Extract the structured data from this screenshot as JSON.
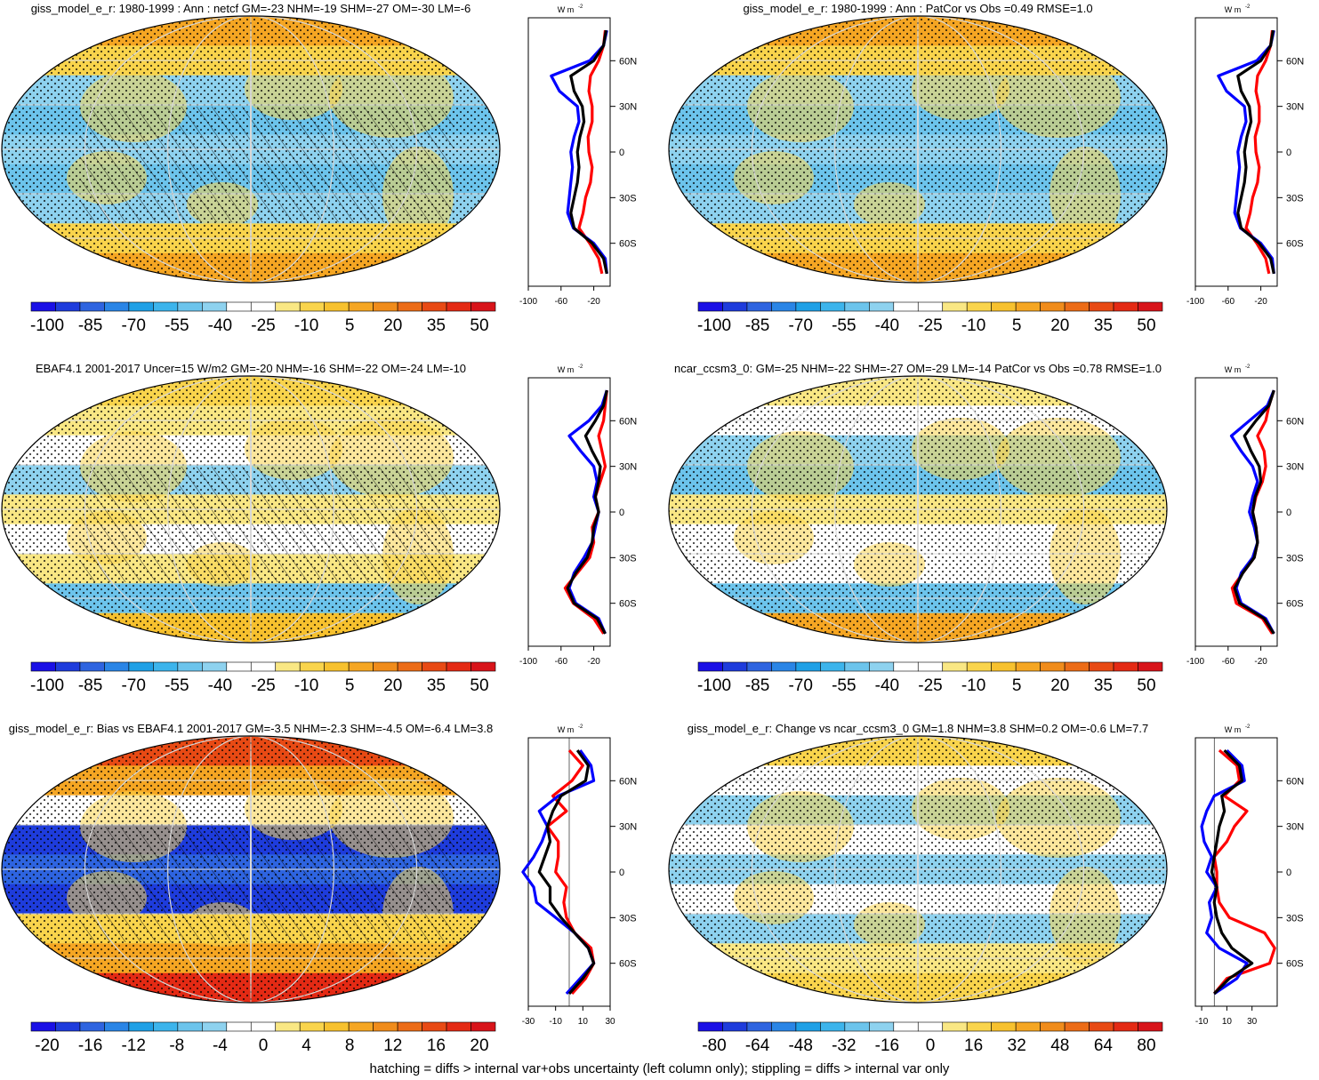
{
  "footnote": "hatching = diffs > internal var+obs uncertainty (left column only); stippling = diffs > internal var only",
  "colors": {
    "palette": [
      "#1a10e6",
      "#1e3cdc",
      "#2e64e0",
      "#2a85e6",
      "#1fa0e6",
      "#3cb4ec",
      "#6cc4ec",
      "#8ed2ef",
      "#ffffff",
      "#ffffff",
      "#f9e784",
      "#f9d44c",
      "#f7c12e",
      "#f5a623",
      "#f08c1b",
      "#ec6c17",
      "#e84a14",
      "#e42a14",
      "#d8141a"
    ],
    "zonal_red": "#ff0000",
    "zonal_blue": "#0000ff",
    "zonal_black": "#000000",
    "grid": "#d8d8d8"
  },
  "panels": [
    {
      "id": "p1",
      "title": "giss_model_e_r: 1980-1999 : Ann : netcf GM=-23 NHM=-19 SHM=-27 OM=-30 LM=-6",
      "colorbar_labels": [
        "-100",
        "-85",
        "-70",
        "-55",
        "-40",
        "-25",
        "-10",
        "5",
        "20",
        "35",
        "50"
      ],
      "zonal_unit": "W m",
      "zonal_unit_sup": "-2",
      "zonal_xticks": [
        "-100",
        "-60",
        "-20"
      ],
      "zonal_yticks": [
        "60N",
        "30N",
        "0",
        "30S",
        "60S"
      ],
      "hatched": true
    },
    {
      "id": "p2",
      "title": "giss_model_e_r: 1980-1999 : Ann : PatCor vs Obs =0.49 RMSE=1.0",
      "colorbar_labels": [
        "-100",
        "-85",
        "-70",
        "-55",
        "-40",
        "-25",
        "-10",
        "5",
        "20",
        "35",
        "50"
      ],
      "zonal_unit": "W m",
      "zonal_unit_sup": "-2",
      "zonal_xticks": [
        "-100",
        "-60",
        "-20"
      ],
      "zonal_yticks": [
        "60N",
        "30N",
        "0",
        "30S",
        "60S"
      ],
      "hatched": false
    },
    {
      "id": "p3",
      "title": "EBAF4.1 2001-2017 Uncer=15 W/m2 GM=-20 NHM=-16 SHM=-22 OM=-24 LM=-10",
      "colorbar_labels": [
        "-100",
        "-85",
        "-70",
        "-55",
        "-40",
        "-25",
        "-10",
        "5",
        "20",
        "35",
        "50"
      ],
      "zonal_unit": "W m",
      "zonal_unit_sup": "-2",
      "zonal_xticks": [
        "-100",
        "-60",
        "-20"
      ],
      "zonal_yticks": [
        "60N",
        "30N",
        "0",
        "30S",
        "60S"
      ],
      "hatched": true
    },
    {
      "id": "p4",
      "title": "ncar_ccsm3_0: GM=-25 NHM=-22 SHM=-27 OM=-29 LM=-14 PatCor vs Obs =0.78 RMSE=1.0",
      "colorbar_labels": [
        "-100",
        "-85",
        "-70",
        "-55",
        "-40",
        "-25",
        "-10",
        "5",
        "20",
        "35",
        "50"
      ],
      "zonal_unit": "W m",
      "zonal_unit_sup": "-2",
      "zonal_xticks": [
        "-100",
        "-60",
        "-20"
      ],
      "zonal_yticks": [
        "60N",
        "30N",
        "0",
        "30S",
        "60S"
      ],
      "hatched": false
    },
    {
      "id": "p5",
      "title": "giss_model_e_r: Bias vs EBAF4.1 2001-2017 GM=-3.5 NHM=-2.3 SHM=-4.5 OM=-6.4 LM=3.8",
      "colorbar_labels": [
        "-20",
        "-16",
        "-12",
        "-8",
        "-4",
        "0",
        "4",
        "8",
        "12",
        "16",
        "20"
      ],
      "zonal_unit": "W m",
      "zonal_unit_sup": "-2",
      "zonal_xticks": [
        "-30",
        "-10",
        "10",
        "30"
      ],
      "zonal_yticks": [
        "60N",
        "30N",
        "0",
        "30S",
        "60S"
      ],
      "hatched": true
    },
    {
      "id": "p6",
      "title": "giss_model_e_r: Change vs ncar_ccsm3_0 GM=1.8 NHM=3.8 SHM=0.2 OM=-0.6 LM=7.7",
      "colorbar_labels": [
        "-80",
        "-64",
        "-48",
        "-32",
        "-16",
        "0",
        "16",
        "32",
        "48",
        "64",
        "80"
      ],
      "zonal_unit": "W m",
      "zonal_unit_sup": "-2",
      "zonal_xticks": [
        "-10",
        "10",
        "30"
      ],
      "zonal_yticks": [
        "60N",
        "30N",
        "0",
        "30S",
        "60S"
      ],
      "hatched": false
    }
  ],
  "chart_data": [
    {
      "type": "heatmap",
      "title": "giss_model_e_r: 1980-1999 : Ann : netcf GM=-23 NHM=-19 SHM=-27 OM=-30 LM=-6",
      "colorbar_ticks": [
        -100,
        -85,
        -70,
        -55,
        -40,
        -25,
        -10,
        5,
        20,
        35,
        50
      ],
      "zonal_mean": {
        "lat": [
          -80,
          -70,
          -60,
          -50,
          -40,
          -30,
          -20,
          -10,
          0,
          10,
          20,
          30,
          40,
          50,
          60,
          70,
          80
        ],
        "xlim": [
          -100,
          0
        ],
        "series": [
          {
            "color": "red",
            "values": [
              -10,
              -14,
              -25,
              -38,
              -33,
              -30,
              -24,
              -22,
              -26,
              -27,
              -22,
              -22,
              -26,
              -24,
              -14,
              -8,
              -6
            ]
          },
          {
            "color": "blue",
            "values": [
              -4,
              -6,
              -20,
              -45,
              -52,
              -50,
              -48,
              -46,
              -48,
              -44,
              -38,
              -40,
              -62,
              -72,
              -25,
              -8,
              -4
            ]
          },
          {
            "color": "black",
            "values": [
              -4,
              -8,
              -22,
              -44,
              -48,
              -44,
              -40,
              -38,
              -40,
              -37,
              -32,
              -34,
              -44,
              -48,
              -20,
              -8,
              -5
            ]
          }
        ]
      }
    },
    {
      "type": "heatmap",
      "title": "giss_model_e_r: 1980-1999 : Ann : PatCor vs Obs =0.49 RMSE=1.0",
      "colorbar_ticks": [
        -100,
        -85,
        -70,
        -55,
        -40,
        -25,
        -10,
        5,
        20,
        35,
        50
      ],
      "zonal_mean": {
        "lat": [
          -80,
          -70,
          -60,
          -50,
          -40,
          -30,
          -20,
          -10,
          0,
          10,
          20,
          30,
          40,
          50,
          60,
          70,
          80
        ],
        "xlim": [
          -100,
          0
        ],
        "series": [
          {
            "color": "red",
            "values": [
              -10,
              -14,
              -25,
              -38,
              -33,
              -30,
              -24,
              -22,
              -26,
              -27,
              -22,
              -22,
              -26,
              -24,
              -14,
              -8,
              -6
            ]
          },
          {
            "color": "blue",
            "values": [
              -4,
              -6,
              -20,
              -45,
              -52,
              -50,
              -48,
              -46,
              -48,
              -44,
              -38,
              -40,
              -62,
              -72,
              -25,
              -8,
              -4
            ]
          },
          {
            "color": "black",
            "values": [
              -4,
              -8,
              -22,
              -44,
              -48,
              -44,
              -40,
              -38,
              -40,
              -37,
              -32,
              -34,
              -44,
              -48,
              -20,
              -8,
              -5
            ]
          }
        ]
      }
    },
    {
      "type": "heatmap",
      "title": "EBAF4.1 2001-2017 Uncer=15 W/m2 GM=-20 NHM=-16 SHM=-22 OM=-24 LM=-10",
      "colorbar_ticks": [
        -100,
        -85,
        -70,
        -55,
        -40,
        -25,
        -10,
        5,
        20,
        35,
        50
      ],
      "zonal_mean": {
        "lat": [
          -80,
          -70,
          -60,
          -50,
          -40,
          -30,
          -20,
          -10,
          0,
          10,
          20,
          30,
          40,
          50,
          60,
          70,
          80
        ],
        "xlim": [
          -100,
          0
        ],
        "series": [
          {
            "color": "red",
            "values": [
              -8,
              -20,
              -45,
              -55,
              -40,
              -25,
              -20,
              -22,
              -14,
              -18,
              -12,
              -6,
              -10,
              -14,
              -8,
              -6,
              -4
            ]
          },
          {
            "color": "blue",
            "values": [
              -6,
              -14,
              -42,
              -50,
              -44,
              -32,
              -22,
              -18,
              -14,
              -20,
              -16,
              -20,
              -36,
              -50,
              -26,
              -10,
              -4
            ]
          },
          {
            "color": "black",
            "values": [
              -6,
              -16,
              -44,
              -52,
              -42,
              -28,
              -22,
              -20,
              -14,
              -18,
              -14,
              -12,
              -22,
              -30,
              -18,
              -8,
              -4
            ]
          }
        ]
      }
    },
    {
      "type": "heatmap",
      "title": "ncar_ccsm3_0: GM=-25 NHM=-22 SHM=-27 OM=-29 LM=-14 PatCor vs Obs =0.78 RMSE=1.0",
      "colorbar_ticks": [
        -100,
        -85,
        -70,
        -55,
        -40,
        -25,
        -10,
        5,
        20,
        35,
        50
      ],
      "zonal_mean": {
        "lat": [
          -80,
          -70,
          -60,
          -50,
          -40,
          -30,
          -20,
          -10,
          0,
          10,
          20,
          30,
          40,
          50,
          60,
          70,
          80
        ],
        "xlim": [
          -100,
          0
        ],
        "series": [
          {
            "color": "red",
            "values": [
              -6,
              -18,
              -50,
              -55,
              -42,
              -28,
              -24,
              -26,
              -30,
              -26,
              -18,
              -14,
              -16,
              -24,
              -14,
              -10,
              -4
            ]
          },
          {
            "color": "blue",
            "values": [
              -4,
              -14,
              -44,
              -50,
              -44,
              -30,
              -24,
              -28,
              -34,
              -30,
              -24,
              -30,
              -44,
              -56,
              -34,
              -12,
              -4
            ]
          },
          {
            "color": "black",
            "values": [
              -4,
              -16,
              -46,
              -52,
              -42,
              -28,
              -24,
              -26,
              -30,
              -27,
              -20,
              -22,
              -32,
              -40,
              -26,
              -10,
              -4
            ]
          }
        ]
      }
    },
    {
      "type": "heatmap",
      "title": "giss_model_e_r: Bias vs EBAF4.1 2001-2017 GM=-3.5 NHM=-2.3 SHM=-4.5 OM=-6.4 LM=3.8",
      "colorbar_ticks": [
        -20,
        -16,
        -12,
        -8,
        -4,
        0,
        4,
        8,
        12,
        16,
        20
      ],
      "zonal_mean": {
        "lat": [
          -80,
          -70,
          -60,
          -50,
          -40,
          -30,
          -20,
          -10,
          0,
          10,
          20,
          30,
          40,
          50,
          60,
          70,
          80
        ],
        "xlim": [
          -30,
          30
        ],
        "series": [
          {
            "color": "red",
            "values": [
              2,
              12,
              18,
              16,
              4,
              -2,
              -4,
              -2,
              -10,
              -8,
              -8,
              -16,
              -2,
              -12,
              2,
              10,
              0
            ]
          },
          {
            "color": "blue",
            "values": [
              -2,
              8,
              18,
              14,
              4,
              -10,
              -24,
              -26,
              -34,
              -26,
              -20,
              -16,
              -22,
              -8,
              18,
              16,
              8
            ]
          },
          {
            "color": "black",
            "values": [
              0,
              10,
              18,
              14,
              4,
              -6,
              -14,
              -14,
              -22,
              -18,
              -14,
              -16,
              -12,
              -6,
              12,
              14,
              6
            ]
          }
        ]
      }
    },
    {
      "type": "heatmap",
      "title": "giss_model_e_r: Change vs ncar_ccsm3_0 GM=1.8 NHM=3.8 SHM=0.2 OM=-0.6 LM=7.7",
      "colorbar_ticks": [
        -80,
        -64,
        -48,
        -32,
        -16,
        0,
        16,
        32,
        48,
        64,
        80
      ],
      "zonal_mean": {
        "lat": [
          -80,
          -70,
          -60,
          -50,
          -40,
          -30,
          -20,
          -10,
          0,
          10,
          20,
          30,
          40,
          50,
          60,
          70,
          80
        ],
        "xlim": [
          -15,
          50
        ],
        "series": [
          {
            "color": "red",
            "values": [
              0,
              10,
              44,
              48,
              40,
              12,
              4,
              2,
              2,
              0,
              10,
              16,
              26,
              8,
              20,
              18,
              4
            ]
          },
          {
            "color": "blue",
            "values": [
              0,
              18,
              26,
              4,
              -6,
              -2,
              -4,
              2,
              -6,
              -2,
              -8,
              -10,
              -6,
              0,
              24,
              22,
              10
            ]
          },
          {
            "color": "black",
            "values": [
              0,
              12,
              30,
              14,
              6,
              2,
              0,
              2,
              -2,
              0,
              2,
              4,
              8,
              6,
              22,
              20,
              8
            ]
          }
        ]
      }
    }
  ]
}
